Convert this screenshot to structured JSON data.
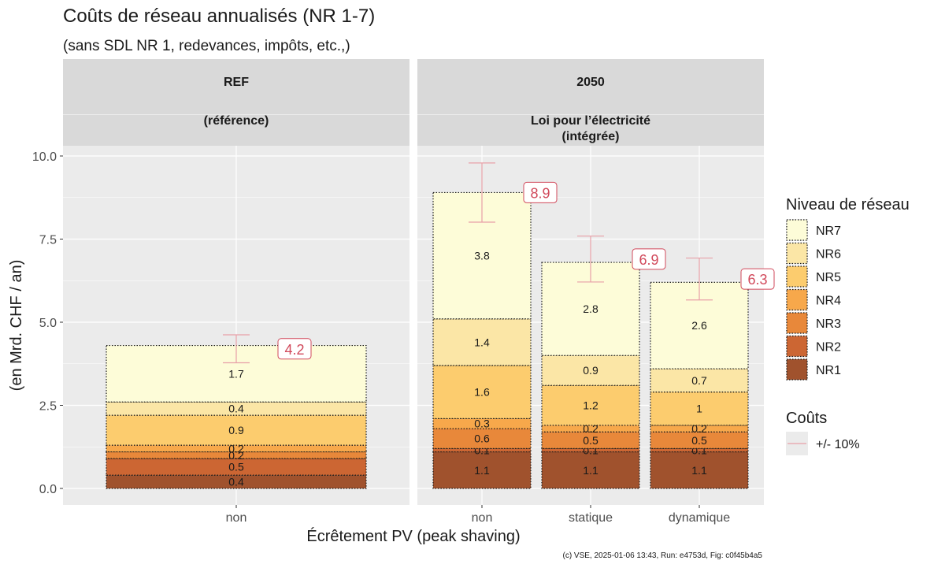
{
  "chart_data": {
    "type": "bar",
    "stacked": true,
    "title": "Coûts de réseau annualisés (NR 1-7)",
    "subtitle": "(sans SDL NR 1, redevances, impôts, etc.,)",
    "xlabel": "Écrêtement PV (peak shaving)",
    "ylabel": "(en Mrd. CHF / an)",
    "ylim": [
      0,
      11.5
    ],
    "yticks": [
      "0.0",
      "2.5",
      "5.0",
      "7.5",
      "10.0"
    ],
    "grid": true,
    "caption": "(c) VSE, 2025-01-06 13:43, Run: e4753d, Fig: c0f45b4a5",
    "facets": [
      {
        "header_line1": "REF",
        "header_line2": "(référence)",
        "header_line3": "",
        "categories": [
          "non"
        ],
        "segments": [
          [
            0.4,
            0.5,
            0.2,
            0.2,
            0.9,
            0.4,
            1.7
          ]
        ],
        "segment_labels": [
          [
            "0.4",
            "0.5",
            "0.2",
            "0.2",
            "0.9",
            "0.4",
            "1.7"
          ]
        ],
        "totals": [
          4.2
        ],
        "total_labels": [
          "4.2"
        ],
        "error_low": [
          3.78
        ],
        "error_high": [
          4.62
        ]
      },
      {
        "header_line1": "2050",
        "header_line2": "Loi pour l’électricité",
        "header_line3": "(intégrée)",
        "categories": [
          "non",
          "statique",
          "dynamique"
        ],
        "segments": [
          [
            1.1,
            0.1,
            0.6,
            0.3,
            1.6,
            1.4,
            3.8
          ],
          [
            1.1,
            0.1,
            0.5,
            0.2,
            1.2,
            0.9,
            2.8
          ],
          [
            1.1,
            0.1,
            0.5,
            0.2,
            1.0,
            0.7,
            2.6
          ]
        ],
        "segment_labels": [
          [
            "1.1",
            "0.1",
            "0.6",
            "0.3",
            "1.6",
            "1.4",
            "3.8"
          ],
          [
            "1.1",
            "0.1",
            "0.5",
            "0.2",
            "1.2",
            "0.9",
            "2.8"
          ],
          [
            "1.1",
            "0.1",
            "0.5",
            "0.2",
            "1",
            "0.7",
            "2.6"
          ]
        ],
        "totals": [
          8.9,
          6.9,
          6.3
        ],
        "total_labels": [
          "8.9",
          "6.9",
          "6.3"
        ],
        "error_low": [
          8.01,
          6.21,
          5.67
        ],
        "error_high": [
          9.79,
          7.59,
          6.93
        ]
      }
    ],
    "series": [
      {
        "name": "NR1",
        "color": "#a0522d"
      },
      {
        "name": "NR2",
        "color": "#cc6633"
      },
      {
        "name": "NR3",
        "color": "#e8883a"
      },
      {
        "name": "NR4",
        "color": "#f7a84b"
      },
      {
        "name": "NR5",
        "color": "#fccc6e"
      },
      {
        "name": "NR6",
        "color": "#fbe6a6"
      },
      {
        "name": "NR7",
        "color": "#fdfcd8"
      }
    ],
    "legend": {
      "placement": "right",
      "title": "Niveau de réseau",
      "items": [
        "NR7",
        "NR6",
        "NR5",
        "NR4",
        "NR3",
        "NR2",
        "NR1"
      ],
      "error_title": "Coûts",
      "error_label": "+/- 10%",
      "error_color": "#e8a0a8"
    },
    "colors": {
      "panel_bg": "#ebebeb",
      "strip_bg": "#d9d9d9",
      "total_label": "#d1495b",
      "grid": "#ffffff"
    }
  }
}
